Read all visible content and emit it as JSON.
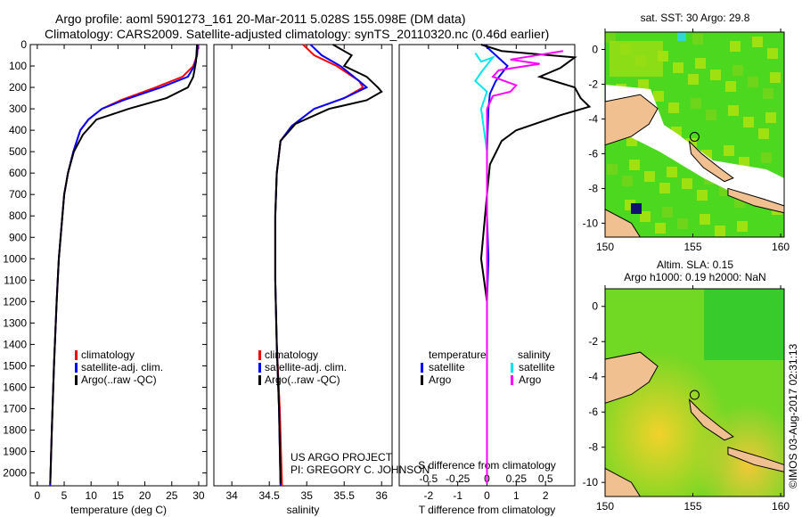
{
  "header": {
    "title1": "Argo profile: aoml 5901273_161 20-Mar-2011 5.028S 155.098E (DM data)",
    "title2": "Climatology: CARS2009. Satellite-adjusted climatology: synTS_20110320.nc (0.46d earlier)"
  },
  "colors": {
    "climatology": "#ff0000",
    "satellite": "#0000ff",
    "argo": "#000000",
    "sal_satellite": "#00e5ee",
    "sal_argo": "#ff00ff"
  },
  "credits": {
    "project": "US ARGO PROJECT",
    "pi": "PI: GREGORY C. JOHNSON",
    "stamp": "©IMOS 03-Aug-2017 02:31:13"
  },
  "chart_data": [
    {
      "type": "line",
      "id": "temperature",
      "xlabel": "temperature (deg C)",
      "xlim": [
        -1.3,
        31.5
      ],
      "ylim": [
        2060,
        0
      ],
      "xticks": [
        0,
        5,
        10,
        15,
        20,
        25,
        30
      ],
      "yticks": [
        0,
        100,
        200,
        300,
        400,
        500,
        600,
        700,
        800,
        900,
        1000,
        1100,
        1200,
        1300,
        1400,
        1500,
        1600,
        1700,
        1800,
        1900,
        2000
      ],
      "legend": [
        "climatology",
        "satellite-adj. clim.",
        "Argo(..raw -QC)"
      ],
      "series": [
        {
          "name": "climatology",
          "color": "#ff0000",
          "points": [
            [
              29.9,
              0
            ],
            [
              29.7,
              50
            ],
            [
              29,
              100
            ],
            [
              27,
              150
            ],
            [
              22,
              200
            ],
            [
              15.5,
              260
            ],
            [
              12,
              300
            ],
            [
              9.5,
              350
            ],
            [
              8,
              400
            ],
            [
              6.7,
              500
            ],
            [
              5.7,
              600
            ],
            [
              5,
              700
            ],
            [
              4.5,
              850
            ],
            [
              4,
              1000
            ],
            [
              3.6,
              1200
            ],
            [
              3.1,
              1500
            ],
            [
              2.7,
              1800
            ],
            [
              2.4,
              2060
            ]
          ]
        },
        {
          "name": "satellite-adj. clim.",
          "color": "#0000ff",
          "points": [
            [
              29.8,
              0
            ],
            [
              29.7,
              50
            ],
            [
              29.2,
              100
            ],
            [
              28,
              150
            ],
            [
              23,
              200
            ],
            [
              16,
              260
            ],
            [
              12,
              300
            ],
            [
              9.5,
              350
            ],
            [
              8,
              400
            ],
            [
              6.7,
              500
            ],
            [
              5.7,
              600
            ],
            [
              5,
              700
            ],
            [
              4.5,
              850
            ],
            [
              4,
              1000
            ],
            [
              3.6,
              1200
            ],
            [
              3.1,
              1500
            ],
            [
              2.7,
              1800
            ],
            [
              2.4,
              2060
            ]
          ]
        },
        {
          "name": "Argo(..raw -QC)",
          "color": "#000000",
          "points": [
            [
              29.7,
              0
            ],
            [
              29.5,
              80
            ],
            [
              29,
              150
            ],
            [
              28,
              200
            ],
            [
              24,
              250
            ],
            [
              17,
              300
            ],
            [
              11,
              350
            ],
            [
              8.5,
              420
            ],
            [
              6.8,
              500
            ],
            [
              5.7,
              600
            ],
            [
              5,
              700
            ],
            [
              4.5,
              850
            ],
            [
              4,
              1000
            ],
            [
              3.6,
              1200
            ],
            [
              3.1,
              1500
            ],
            [
              2.7,
              1800
            ],
            [
              2.4,
              2050
            ]
          ]
        }
      ]
    },
    {
      "type": "line",
      "id": "salinity",
      "xlabel": "salinity",
      "xlim": [
        33.76,
        36.14
      ],
      "ylim": [
        2060,
        0
      ],
      "xticks": [
        34,
        34.5,
        35,
        35.5,
        36
      ],
      "legend": [
        "climatology",
        "satellite-adj. clim.",
        "Argo(..raw -QC)"
      ],
      "series": [
        {
          "name": "climatology",
          "color": "#ff0000",
          "points": [
            [
              34.95,
              0
            ],
            [
              35.1,
              50
            ],
            [
              35.4,
              100
            ],
            [
              35.7,
              170
            ],
            [
              35.75,
              200
            ],
            [
              35.5,
              250
            ],
            [
              35.1,
              300
            ],
            [
              34.8,
              380
            ],
            [
              34.65,
              450
            ],
            [
              34.6,
              600
            ],
            [
              34.58,
              800
            ],
            [
              34.58,
              1100
            ],
            [
              34.6,
              1400
            ],
            [
              34.64,
              1700
            ],
            [
              34.67,
              2060
            ]
          ]
        },
        {
          "name": "satellite-adj. clim.",
          "color": "#0000ff",
          "points": [
            [
              35.05,
              0
            ],
            [
              35.2,
              50
            ],
            [
              35.45,
              100
            ],
            [
              35.7,
              170
            ],
            [
              35.8,
              200
            ],
            [
              35.5,
              250
            ],
            [
              35.1,
              300
            ],
            [
              34.8,
              380
            ],
            [
              34.65,
              450
            ],
            [
              34.6,
              600
            ],
            [
              34.58,
              800
            ],
            [
              34.58,
              1100
            ],
            [
              34.6,
              1400
            ],
            [
              34.63,
              1700
            ],
            [
              34.65,
              2060
            ]
          ]
        },
        {
          "name": "Argo(..raw -QC)",
          "color": "#000000",
          "points": [
            [
              35.35,
              0
            ],
            [
              35.6,
              50
            ],
            [
              35.5,
              100
            ],
            [
              35.8,
              150
            ],
            [
              35.95,
              200
            ],
            [
              36.0,
              220
            ],
            [
              35.8,
              260
            ],
            [
              35.3,
              300
            ],
            [
              34.85,
              370
            ],
            [
              34.65,
              450
            ],
            [
              34.6,
              600
            ],
            [
              34.58,
              800
            ],
            [
              34.58,
              1100
            ],
            [
              34.6,
              1400
            ],
            [
              34.63,
              1700
            ],
            [
              34.65,
              2050
            ]
          ]
        }
      ]
    },
    {
      "type": "line",
      "id": "difference",
      "xlabel": "T difference from climatology",
      "xlabel2": "S difference from climatology",
      "xlim": [
        -3,
        3
      ],
      "ylim": [
        2060,
        0
      ],
      "xticks": [
        -2,
        -1,
        0,
        1,
        2
      ],
      "xticks2": [
        -0.5,
        -0.25,
        0,
        0.25,
        0.5
      ],
      "legend": {
        "temperature": "temperature",
        "salinity": "salinity",
        "satellite": "satellite",
        "argo": "Argo"
      },
      "series": [
        {
          "name": "T satellite",
          "color": "#0000ff",
          "scale": 1,
          "points": [
            [
              -0.1,
              0
            ],
            [
              0.3,
              50
            ],
            [
              0.7,
              100
            ],
            [
              0.3,
              170
            ],
            [
              0.1,
              230
            ],
            [
              0.05,
              300
            ],
            [
              0,
              500
            ],
            [
              0,
              800
            ],
            [
              0.05,
              1000
            ],
            [
              0,
              1200
            ],
            [
              0,
              2050
            ]
          ]
        },
        {
          "name": "T Argo",
          "color": "#000000",
          "scale": 1,
          "points": [
            [
              -0.2,
              0
            ],
            [
              0.5,
              30
            ],
            [
              3.0,
              60
            ],
            [
              2.5,
              110
            ],
            [
              1.8,
              150
            ],
            [
              3.0,
              200
            ],
            [
              3.2,
              250
            ],
            [
              3.5,
              290
            ],
            [
              2.5,
              330
            ],
            [
              1.0,
              400
            ],
            [
              0.5,
              450
            ],
            [
              0.1,
              560
            ],
            [
              0,
              700
            ],
            [
              -0.2,
              1000
            ],
            [
              -0.1,
              1100
            ],
            [
              0,
              1200
            ],
            [
              0,
              2050
            ]
          ]
        },
        {
          "name": "S satellite",
          "color": "#00e5ee",
          "scale": 4,
          "points": [
            [
              -0.1,
              40
            ],
            [
              -0.05,
              80
            ],
            [
              0.05,
              60
            ],
            [
              -0.05,
              130
            ],
            [
              -0.1,
              170
            ],
            [
              0,
              220
            ],
            [
              -0.05,
              300
            ],
            [
              0,
              500
            ],
            [
              0,
              2050
            ]
          ]
        },
        {
          "name": "S Argo",
          "color": "#ff00ff",
          "scale": 4,
          "points": [
            [
              0.65,
              30
            ],
            [
              0.2,
              70
            ],
            [
              0.45,
              90
            ],
            [
              0.1,
              120
            ],
            [
              0.05,
              150
            ],
            [
              0.25,
              190
            ],
            [
              0.2,
              220
            ],
            [
              0.05,
              240
            ],
            [
              0,
              300
            ],
            [
              0,
              2050
            ]
          ]
        }
      ]
    },
    {
      "type": "heatmap",
      "id": "sst-map",
      "title": "sat. SST: 30 Argo: 29.8",
      "xlim": [
        150,
        160.2
      ],
      "ylim": [
        -10.8,
        1
      ],
      "xticks": [
        150,
        155,
        160
      ],
      "yticks": [
        0,
        -2,
        -4,
        -6,
        -8,
        -10
      ],
      "argo_position": [
        155.098,
        -5.028
      ]
    },
    {
      "type": "heatmap",
      "id": "sla-map",
      "title": "Altim. SLA: 0.15",
      "subtitle": "Argo h1000: 0.19 h2000: NaN",
      "xlim": [
        150,
        160.2
      ],
      "ylim": [
        -10.8,
        1
      ],
      "xticks": [
        150,
        155,
        160
      ],
      "yticks": [
        0,
        -2,
        -4,
        -6,
        -8,
        -10
      ],
      "argo_position": [
        155.098,
        -5.028
      ]
    }
  ]
}
